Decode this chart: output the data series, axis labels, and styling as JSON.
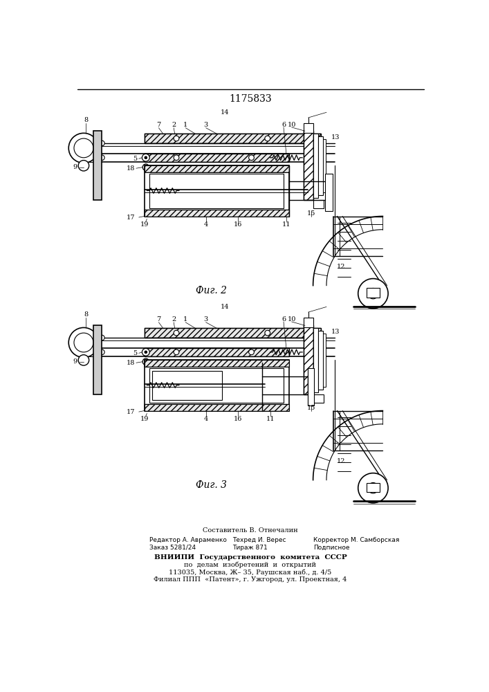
{
  "patent_number": "1175833",
  "fig2_label": "Фиг. 2",
  "fig3_label": "Фиг. 3",
  "footer_line0": "Составитель В. Отнечалин",
  "footer_line1a": "Редактор А. Авраменко",
  "footer_line1b": "Техред И. Верес",
  "footer_line1c": "Корректор М. Самборская",
  "footer_line2a": "Заказ 5281/24",
  "footer_line2b": "Тираж 871",
  "footer_line2c": "Подписное",
  "footer_line3": "ВНИИПИ  Государственного  комитета  СССР",
  "footer_line4": "по  делам  изобретений  и  открытий",
  "footer_line5": "113035, Москва, Ж– 35, Раушская наб., д. 4/5",
  "footer_line6": "Филиал ППП  «Патент», г. Ужгород, ул. Проектная, 4",
  "bg_color": "#ffffff",
  "line_color": "#000000"
}
